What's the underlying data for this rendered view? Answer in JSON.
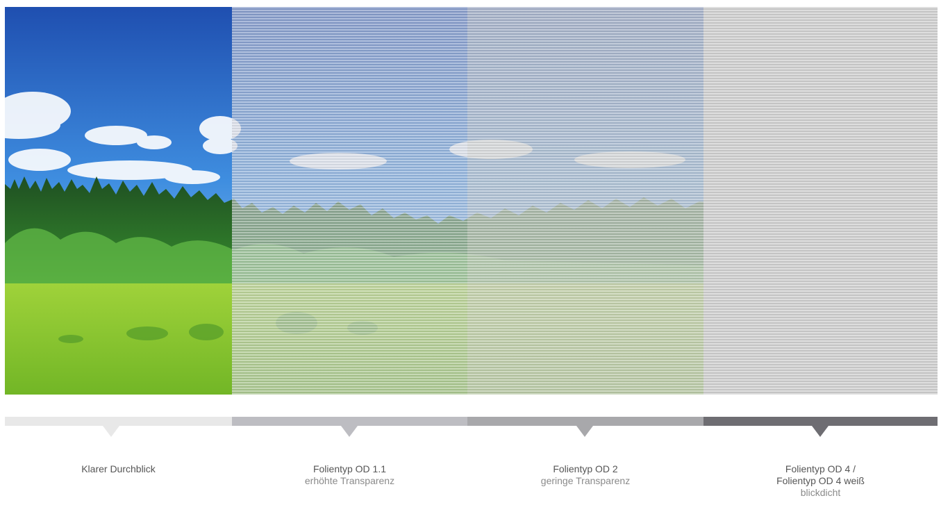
{
  "panels": [
    {
      "title": "Klarer Durchblick",
      "bar_color": "#e8e8e8"
    },
    {
      "title": "Folientyp OD 1.1",
      "subtitle": "erhöhte Transparenz",
      "bar_color": "#bdbdc2"
    },
    {
      "title": "Folientyp OD 2",
      "subtitle": "geringe Transparenz",
      "bar_color": "#a8a8ab"
    },
    {
      "title": "Folientyp OD 4 /",
      "title_line2": "Folientyp OD 4 weiß",
      "subtitle": "blickdicht",
      "bar_color": "#6e6d72"
    }
  ]
}
